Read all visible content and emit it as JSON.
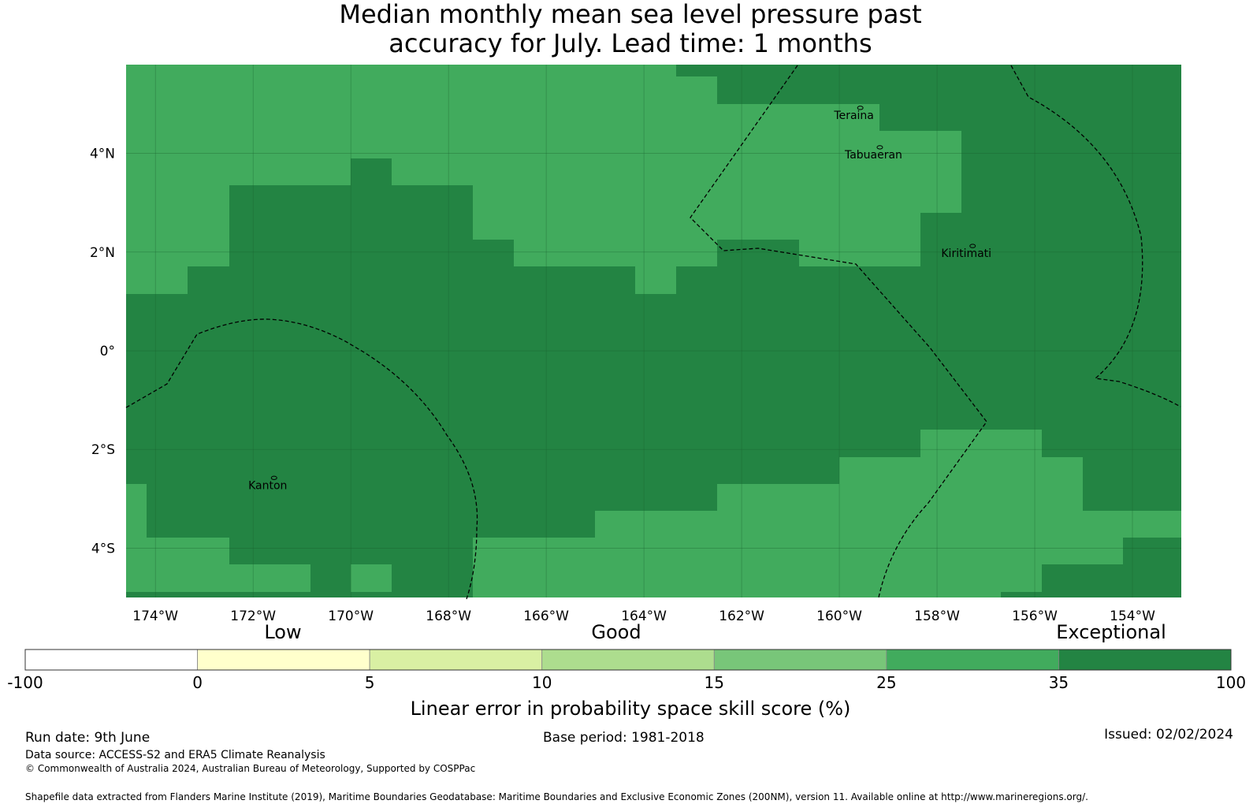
{
  "title_line1": "Median monthly mean sea level pressure past",
  "title_line2": "accuracy for July. Lead time: 1 months",
  "map": {
    "lat_ticks": [
      {
        "label": "4°N",
        "value": 4
      },
      {
        "label": "2°N",
        "value": 2
      },
      {
        "label": "0°",
        "value": 0
      },
      {
        "label": "2°S",
        "value": -2
      },
      {
        "label": "4°S",
        "value": -4
      }
    ],
    "lon_ticks": [
      {
        "label": "174°W",
        "value": -174
      },
      {
        "label": "172°W",
        "value": -172
      },
      {
        "label": "170°W",
        "value": -170
      },
      {
        "label": "168°W",
        "value": -168
      },
      {
        "label": "166°W",
        "value": -166
      },
      {
        "label": "164°W",
        "value": -164
      },
      {
        "label": "162°W",
        "value": -162
      },
      {
        "label": "160°W",
        "value": -160
      },
      {
        "label": "158°W",
        "value": -158
      },
      {
        "label": "156°W",
        "value": -156
      },
      {
        "label": "154°W",
        "value": -154
      }
    ],
    "extent": {
      "lon_min": -174.6,
      "lon_max": -153.0,
      "lat_min": -5.0,
      "lat_max": 5.8
    },
    "colors": {
      "band_25_35": "#41ab5d",
      "band_35_100": "#238443"
    },
    "islands": [
      {
        "name": "Teraina",
        "lon": -159.7,
        "lat": 4.7
      },
      {
        "name": "Tabuaeran",
        "lon": -159.3,
        "lat": 3.9
      },
      {
        "name": "Kiritimati",
        "lon": -157.4,
        "lat": 1.9
      },
      {
        "name": "Kanton",
        "lon": -171.7,
        "lat": -2.8
      }
    ]
  },
  "colorbar": {
    "categories": [
      {
        "label": "Low"
      },
      {
        "label": "Good"
      },
      {
        "label": "Exceptional"
      }
    ],
    "ticks": [
      "-100",
      "0",
      "5",
      "10",
      "15",
      "25",
      "35",
      "100"
    ],
    "colors": [
      "#ffffff",
      "#ffffcc",
      "#d9f0a3",
      "#addd8e",
      "#78c679",
      "#41ab5d",
      "#238443"
    ],
    "label": "Linear error in probability space skill score (%)"
  },
  "footer": {
    "run_date": "Run date: 9th June",
    "base_period": "Base period: 1981-2018",
    "issued": "Issued: 02/02/2024",
    "data_source": "Data source: ACCESS-S2 and ERA5 Climate Reanalysis",
    "copyright": "© Commonwealth of Australia 2024, Australian Bureau of Meteorology, Supported by COSPPac",
    "shapefile": "Shapefile data extracted from Flanders Marine Institute (2019), Maritime Boundaries Geodatabase: Maritime Boundaries and Exclusive Economic Zones (200NM), version 11. Available online at http://www.marineregions.org/."
  }
}
